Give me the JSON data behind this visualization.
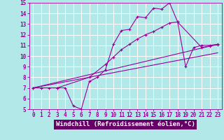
{
  "background_color": "#b2e8e8",
  "grid_color": "#ffffff",
  "line_color": "#990099",
  "xlabel": "Windchill (Refroidissement éolien,°C)",
  "xlabel_fontsize": 6.5,
  "xlabel_bg": "#660066",
  "xlabel_fg": "#ffffff",
  "xlim": [
    -0.5,
    23.5
  ],
  "ylim": [
    5,
    15
  ],
  "xticks": [
    0,
    1,
    2,
    3,
    4,
    5,
    6,
    7,
    8,
    9,
    10,
    11,
    12,
    13,
    14,
    15,
    16,
    17,
    18,
    19,
    20,
    21,
    22,
    23
  ],
  "yticks": [
    5,
    6,
    7,
    8,
    9,
    10,
    11,
    12,
    13,
    14,
    15
  ],
  "tick_fontsize": 5.5,
  "line1_x": [
    0,
    1,
    2,
    3,
    4,
    5,
    6,
    7,
    8,
    9,
    10,
    11,
    12,
    13,
    14,
    15,
    16,
    17,
    18,
    19,
    20,
    21,
    22,
    23
  ],
  "line1_y": [
    7.0,
    7.0,
    7.0,
    7.0,
    7.0,
    5.3,
    5.0,
    7.6,
    8.0,
    8.7,
    11.1,
    12.4,
    12.5,
    13.7,
    13.6,
    14.5,
    14.4,
    15.0,
    13.2,
    9.0,
    10.8,
    11.0,
    11.0,
    11.1
  ],
  "line2_x": [
    0,
    3,
    7,
    9,
    10,
    11,
    12,
    13,
    14,
    15,
    16,
    17,
    18,
    21,
    22,
    23
  ],
  "line2_y": [
    7.0,
    7.0,
    8.0,
    9.2,
    9.9,
    10.6,
    11.1,
    11.6,
    12.0,
    12.3,
    12.7,
    13.1,
    13.2,
    10.8,
    10.95,
    11.05
  ],
  "line3_x": [
    0,
    23
  ],
  "line3_y": [
    7.0,
    10.3
  ],
  "line4_x": [
    0,
    23
  ],
  "line4_y": [
    7.0,
    11.1
  ]
}
